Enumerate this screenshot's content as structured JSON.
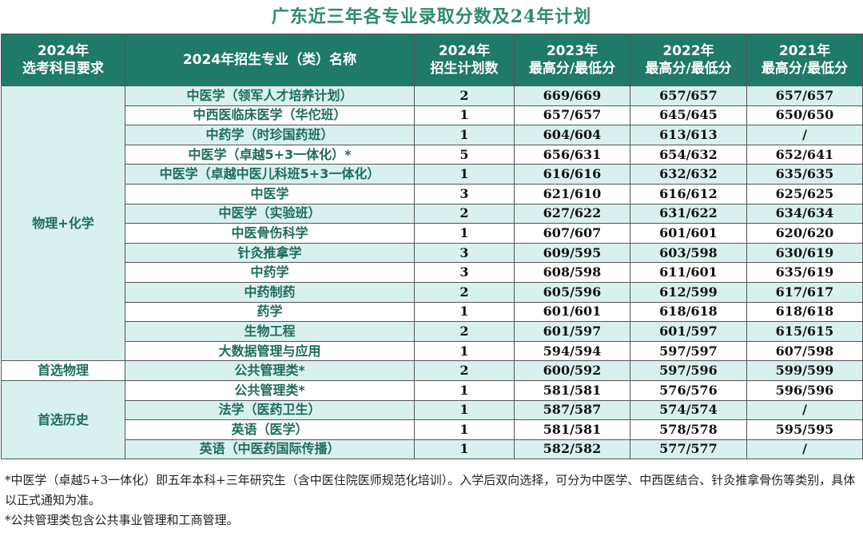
{
  "title": "广东近三年各专业录取分数及24年计划",
  "headers": {
    "subject_line1": "2024年",
    "subject_line2": "选考科目要求",
    "major": "2024年招生专业（类）名称",
    "plan_line1": "2024年",
    "plan_line2": "招生计划数",
    "y2023_line1": "2023年",
    "y2023_line2": "最高分/最低分",
    "y2022_line1": "2022年",
    "y2022_line2": "最高分/最低分",
    "y2021_line1": "2021年",
    "y2021_line2": "最高分/最低分"
  },
  "groups": [
    {
      "label": "物理+化学",
      "rows": 14
    },
    {
      "label": "首选物理",
      "rows": 1
    },
    {
      "label": "首选历史",
      "rows": 4
    }
  ],
  "rows": [
    {
      "major": "中医学（领军人才培养计划）",
      "plan": "2",
      "y2023": "669/669",
      "y2022": "657/657",
      "y2021": "657/657"
    },
    {
      "major": "中西医临床医学（华佗班）",
      "plan": "1",
      "y2023": "657/657",
      "y2022": "645/645",
      "y2021": "650/650"
    },
    {
      "major": "中药学（时珍国药班）",
      "plan": "1",
      "y2023": "604/604",
      "y2022": "613/613",
      "y2021": "/"
    },
    {
      "major": "中医学（卓越5+3一体化）*",
      "plan": "5",
      "y2023": "656/631",
      "y2022": "654/632",
      "y2021": "652/641"
    },
    {
      "major": "中医学（卓越中医儿科班5+3一体化）",
      "plan": "1",
      "y2023": "616/616",
      "y2022": "632/632",
      "y2021": "635/635"
    },
    {
      "major": "中医学",
      "plan": "3",
      "y2023": "621/610",
      "y2022": "616/612",
      "y2021": "625/625"
    },
    {
      "major": "中医学（实验班）",
      "plan": "2",
      "y2023": "627/622",
      "y2022": "631/622",
      "y2021": "634/634"
    },
    {
      "major": "中医骨伤科学",
      "plan": "1",
      "y2023": "607/607",
      "y2022": "601/601",
      "y2021": "620/620"
    },
    {
      "major": "针灸推拿学",
      "plan": "3",
      "y2023": "609/595",
      "y2022": "603/598",
      "y2021": "630/619"
    },
    {
      "major": "中药学",
      "plan": "3",
      "y2023": "608/598",
      "y2022": "611/601",
      "y2021": "635/619"
    },
    {
      "major": "中药制药",
      "plan": "2",
      "y2023": "605/596",
      "y2022": "612/599",
      "y2021": "617/617"
    },
    {
      "major": "药学",
      "plan": "1",
      "y2023": "601/601",
      "y2022": "618/618",
      "y2021": "618/618"
    },
    {
      "major": "生物工程",
      "plan": "2",
      "y2023": "601/597",
      "y2022": "601/597",
      "y2021": "615/615"
    },
    {
      "major": "大数据管理与应用",
      "plan": "1",
      "y2023": "594/594",
      "y2022": "597/597",
      "y2021": "607/598"
    },
    {
      "major": "公共管理类*",
      "plan": "2",
      "y2023": "600/592",
      "y2022": "597/596",
      "y2021": "599/599"
    },
    {
      "major": "公共管理类*",
      "plan": "1",
      "y2023": "581/581",
      "y2022": "576/576",
      "y2021": "596/596"
    },
    {
      "major": "法学（医药卫生）",
      "plan": "1",
      "y2023": "587/587",
      "y2022": "574/574",
      "y2021": "/"
    },
    {
      "major": "英语（医学）",
      "plan": "1",
      "y2023": "581/581",
      "y2022": "578/578",
      "y2021": "595/595"
    },
    {
      "major": "英语（中医药国际传播）",
      "plan": "1",
      "y2023": "582/582",
      "y2022": "577/577",
      "y2021": "/"
    }
  ],
  "notes": [
    "*中医学（卓越5+3一体化）即五年本科+三年研究生（含中医住院医师规范化培训）。入学后双向选择，可分为中医学、中西医结合、针灸推拿骨伤等类别，具体以正式通知为准。",
    "*公共管理类包含公共事业管理和工商管理。"
  ]
}
